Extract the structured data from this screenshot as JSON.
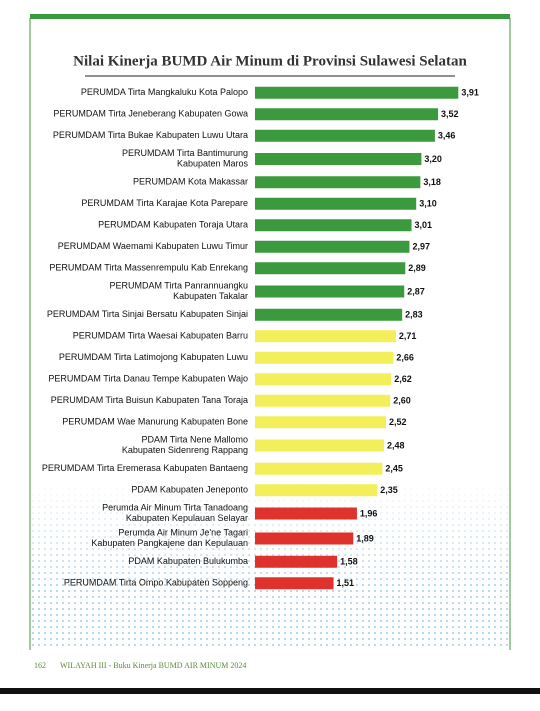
{
  "chart_data": {
    "type": "barh",
    "title": "Nilai Kinerja BUMD Air Minum di Provinsi Sulawesi Selatan",
    "categories": [
      "PERUMDA Tirta Mangkaluku Kota Palopo",
      "PERUMDAM Tirta Jeneberang Kabupaten Gowa",
      "PERUMDAM Tirta Bukae Kabupaten Luwu Utara",
      "PERUMDAM Tirta Bantimurung\nKabupaten Maros",
      "PERUMDAM Kota Makassar",
      "PERUMDAM Tirta Karajae Kota Parepare",
      "PERUMDAM Kabupaten Toraja Utara",
      "PERUMDAM Waemami Kabupaten Luwu Timur",
      "PERUMDAM Tirta Massenrempulu Kab Enrekang",
      "PERUMDAM Tirta Panrannuangku\nKabupaten Takalar",
      "PERUMDAM Tirta Sinjai Bersatu Kabupaten Sinjai",
      "PERUMDAM Tirta Waesai Kabupaten Barru",
      "PERUMDAM Tirta Latimojong Kabupaten Luwu",
      "PERUMDAM Tirta Danau Tempe Kabupaten Wajo",
      "PERUMDAM Tirta Buisun Kabupaten Tana Toraja",
      "PERUMDAM Wae Manurung Kabupaten Bone",
      "PDAM Tirta Nene Mallomo\nKabupaten Sidenreng Rappang",
      "PERUMDAM Tirta Eremerasa Kabupaten Bantaeng",
      "PDAM Kabupaten Jeneponto",
      "Perumda Air Minum Tirta Tanadoang\nKabupaten Kepulauan Selayar",
      "Perumda Air Minum Je'ne Tagari\nKabupaten Pangkajene dan Kepulauan",
      "PDAM Kabupaten Bulukumba",
      "PERUMDAM Tirta Ompo Kabupaten Soppeng"
    ],
    "values": [
      3.91,
      3.52,
      3.46,
      3.2,
      3.18,
      3.1,
      3.01,
      2.97,
      2.89,
      2.87,
      2.83,
      2.71,
      2.66,
      2.62,
      2.6,
      2.52,
      2.48,
      2.45,
      2.35,
      1.96,
      1.89,
      1.58,
      1.51
    ],
    "value_labels": [
      "3,91",
      "3,52",
      "3,46",
      "3,20",
      "3,18",
      "3,10",
      "3,01",
      "2,97",
      "2,89",
      "2,87",
      "2,83",
      "2,71",
      "2,66",
      "2,62",
      "2,60",
      "2,52",
      "2,48",
      "2,45",
      "2,35",
      "1,96",
      "1,89",
      "1,58",
      "1,51"
    ],
    "colors": [
      "#3c9a3e",
      "#3c9a3e",
      "#3c9a3e",
      "#3c9a3e",
      "#3c9a3e",
      "#3c9a3e",
      "#3c9a3e",
      "#3c9a3e",
      "#3c9a3e",
      "#3c9a3e",
      "#3c9a3e",
      "#f3ef5a",
      "#f3ef5a",
      "#f3ef5a",
      "#f3ef5a",
      "#f3ef5a",
      "#f3ef5a",
      "#f3ef5a",
      "#f3ef5a",
      "#e0322c",
      "#e0322c",
      "#e0322c",
      "#e0322c"
    ],
    "xlim": [
      0,
      4
    ]
  },
  "footer": {
    "page": "162",
    "text": "WILAYAH III - Buku Kinerja BUMD AIR MINUM 2024"
  }
}
